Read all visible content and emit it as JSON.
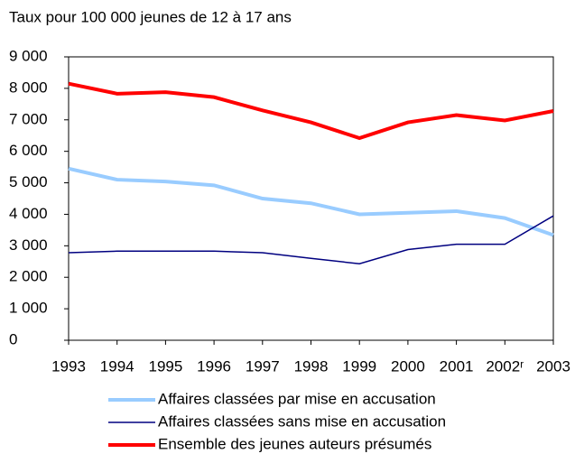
{
  "chart_data": {
    "type": "line",
    "title": "Taux pour 100 000 jeunes de 12 à 17 ans",
    "categories": [
      "1993",
      "1994",
      "1995",
      "1996",
      "1997",
      "1998",
      "1999",
      "2000",
      "2001",
      "2002ʳ",
      "2003"
    ],
    "series": [
      {
        "name": "Affaires classées par mise en accusation",
        "color": "#99ccff",
        "values": [
          5450,
          5100,
          5040,
          4920,
          4500,
          4350,
          4000,
          4050,
          4100,
          3880,
          3340
        ]
      },
      {
        "name": "Affaires classées sans mise en accusation",
        "color": "#000080",
        "values": [
          2780,
          2830,
          2830,
          2830,
          2780,
          2600,
          2430,
          2880,
          3050,
          3050,
          3950
        ]
      },
      {
        "name": "Ensemble des jeunes auteurs présumés",
        "color": "#ff0000",
        "values": [
          8150,
          7830,
          7880,
          7720,
          7300,
          6920,
          6420,
          6920,
          7150,
          6980,
          7280
        ]
      }
    ],
    "ylim": [
      0,
      9000
    ],
    "yticks": [
      0,
      {
        "value": 1000,
        "label": "1 000"
      },
      {
        "value": 2000,
        "label": "2 000"
      },
      {
        "value": 3000,
        "label": "3 000"
      },
      {
        "value": 4000,
        "label": "4 000"
      },
      {
        "value": 5000,
        "label": "5 000"
      },
      {
        "value": 6000,
        "label": "6 000"
      },
      {
        "value": 7000,
        "label": "7 000"
      },
      {
        "value": 8000,
        "label": "8 000"
      },
      {
        "value": 9000,
        "label": "9 000"
      }
    ]
  }
}
